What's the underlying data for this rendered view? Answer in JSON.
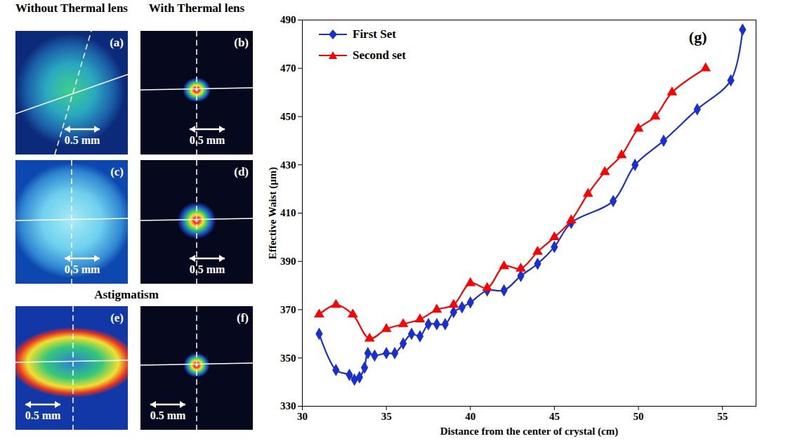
{
  "chart_data": {
    "type": "line",
    "title": "(g)",
    "x_label": "Distance from the center of crystal (cm)",
    "y_label": "Effective Waist (µm)",
    "xlim": [
      30,
      57
    ],
    "xticks": [
      30,
      35,
      40,
      45,
      50,
      55
    ],
    "ylim": [
      330,
      490
    ],
    "yticks": [
      330,
      350,
      370,
      390,
      410,
      430,
      450,
      470,
      490
    ],
    "grid": false,
    "legend": "upper left",
    "series": [
      {
        "name": "First Set",
        "color": "#1a2fd0",
        "marker": "diamond",
        "line_style": "solid",
        "x": [
          31,
          32,
          32.8,
          33.1,
          33.4,
          33.7,
          33.9,
          34.3,
          35,
          35.5,
          36,
          36.5,
          37,
          37.5,
          38,
          38.5,
          39,
          39.5,
          40,
          41,
          42,
          43,
          44,
          45,
          46,
          48.5,
          49.8,
          51.5,
          53.5,
          55.5,
          56.2
        ],
        "values": [
          360,
          345,
          343,
          341,
          342,
          346,
          352,
          351,
          352,
          352,
          356,
          360,
          359,
          364,
          364,
          364,
          369,
          371,
          373,
          378,
          378,
          384,
          389,
          396,
          406,
          415,
          430,
          440,
          453,
          465,
          486
        ]
      },
      {
        "name": "Second set",
        "color": "#ff0000",
        "marker": "triangle",
        "line_style": "solid",
        "x": [
          31,
          32,
          33,
          34,
          35,
          36,
          37,
          38,
          39,
          40,
          41,
          42,
          43,
          44,
          45,
          46,
          47,
          48,
          49,
          50,
          51,
          52,
          54
        ],
        "values": [
          368,
          372,
          368,
          358,
          362,
          364,
          366,
          370,
          372,
          381,
          379,
          388,
          387,
          394,
          400,
          407,
          418,
          427,
          434,
          445,
          450,
          460,
          470
        ]
      }
    ]
  },
  "beam_images": {
    "column_titles": [
      "Without Thermal lens",
      "With Thermal lens"
    ],
    "row_title": "Astigmatism",
    "panels": [
      {
        "label": "(a)",
        "scale_bar": "0.5 mm"
      },
      {
        "label": "(b)",
        "scale_bar": "0.5 mm"
      },
      {
        "label": "(c)",
        "scale_bar": "0.5 mm"
      },
      {
        "label": "(d)",
        "scale_bar": "0.5 mm"
      },
      {
        "label": "(e)",
        "scale_bar": "0.5 mm"
      },
      {
        "label": "(f)",
        "scale_bar": "0.5 mm"
      }
    ]
  }
}
